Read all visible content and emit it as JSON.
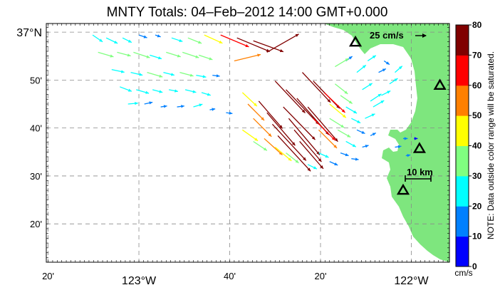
{
  "title": "MNTY Totals: 04–Feb–2012 14:00 GMT+0.000",
  "map": {
    "lon_range": [
      -123.34,
      -121.86
    ],
    "lat_range": [
      36.2,
      37.03
    ],
    "lon_ticks": [
      {
        "value": -123.3333,
        "label": "20'",
        "major": false
      },
      {
        "value": -123.0,
        "label": "123°W",
        "major": true
      },
      {
        "value": -122.6667,
        "label": "40'",
        "major": false
      },
      {
        "value": -122.3333,
        "label": "20'",
        "major": false
      },
      {
        "value": -122.0,
        "label": "122°W",
        "major": true
      }
    ],
    "lat_ticks": [
      {
        "value": 37.0,
        "label": "37°N",
        "major": true
      },
      {
        "value": 36.8333,
        "label": "50'",
        "major": false
      },
      {
        "value": 36.6667,
        "label": "40'",
        "major": false
      },
      {
        "value": 36.5,
        "label": "30'",
        "major": false
      },
      {
        "value": 36.3333,
        "label": "20'",
        "major": false
      }
    ],
    "grid": true,
    "land_color": "#7ee67e",
    "sea_color": "#ffffff",
    "stations_icon": "triangle-icon",
    "stations": [
      {
        "lon": -122.205,
        "lat": 36.965
      },
      {
        "lon": -121.895,
        "lat": 36.815
      },
      {
        "lon": -121.97,
        "lat": 36.595
      },
      {
        "lon": -122.03,
        "lat": 36.45
      }
    ],
    "scale_vector": {
      "label": "25 cm/s",
      "speed": 25
    },
    "scale_bar": {
      "label": "10 km",
      "km": 10
    }
  },
  "colorbar": {
    "unit": "cm/s",
    "ticks": [
      0,
      10,
      20,
      30,
      40,
      50,
      60,
      70,
      80
    ],
    "colors": [
      "#0000ff",
      "#0080ff",
      "#00ffff",
      "#80ff80",
      "#ffff00",
      "#ff8000",
      "#ff0000",
      "#800000"
    ],
    "note": "NOTE: Data outside color range will be saturated."
  },
  "vectors": [
    {
      "lon": -123.17,
      "lat": 36.99,
      "u": 22,
      "v": -15
    },
    {
      "lon": -123.12,
      "lat": 36.98,
      "u": 25,
      "v": -12
    },
    {
      "lon": -123.06,
      "lat": 36.98,
      "u": 20,
      "v": -10
    },
    {
      "lon": -123.0,
      "lat": 36.99,
      "u": 18,
      "v": -6
    },
    {
      "lon": -122.94,
      "lat": 36.99,
      "u": 12,
      "v": -4
    },
    {
      "lon": -122.88,
      "lat": 36.98,
      "u": 24,
      "v": -8
    },
    {
      "lon": -122.82,
      "lat": 36.98,
      "u": 30,
      "v": -12
    },
    {
      "lon": -122.76,
      "lat": 36.99,
      "u": 40,
      "v": -18
    },
    {
      "lon": -122.7,
      "lat": 36.99,
      "u": 62,
      "v": -26
    },
    {
      "lon": -122.64,
      "lat": 36.98,
      "u": 72,
      "v": -30
    },
    {
      "lon": -122.58,
      "lat": 36.97,
      "u": 66,
      "v": -24
    },
    {
      "lon": -123.15,
      "lat": 36.93,
      "u": 34,
      "v": -10
    },
    {
      "lon": -123.08,
      "lat": 36.93,
      "u": 30,
      "v": -8
    },
    {
      "lon": -123.02,
      "lat": 36.93,
      "u": 36,
      "v": -12
    },
    {
      "lon": -122.96,
      "lat": 36.92,
      "u": 26,
      "v": -8
    },
    {
      "lon": -122.9,
      "lat": 36.93,
      "u": 32,
      "v": -10
    },
    {
      "lon": -122.84,
      "lat": 36.93,
      "u": 36,
      "v": -12
    },
    {
      "lon": -122.78,
      "lat": 36.92,
      "u": 30,
      "v": -10
    },
    {
      "lon": -122.65,
      "lat": 36.9,
      "u": 58,
      "v": 14
    },
    {
      "lon": -122.53,
      "lat": 36.93,
      "u": 70,
      "v": 40
    },
    {
      "lon": -123.1,
      "lat": 36.87,
      "u": 28,
      "v": -6
    },
    {
      "lon": -123.03,
      "lat": 36.86,
      "u": 26,
      "v": -6
    },
    {
      "lon": -122.97,
      "lat": 36.86,
      "u": 34,
      "v": -10
    },
    {
      "lon": -122.91,
      "lat": 36.86,
      "u": 24,
      "v": -6
    },
    {
      "lon": -122.85,
      "lat": 36.86,
      "u": 30,
      "v": -8
    },
    {
      "lon": -122.79,
      "lat": 36.85,
      "u": 22,
      "v": -4
    },
    {
      "lon": -122.73,
      "lat": 36.85,
      "u": 16,
      "v": -2
    },
    {
      "lon": -123.07,
      "lat": 36.81,
      "u": 26,
      "v": -10
    },
    {
      "lon": -123.01,
      "lat": 36.8,
      "u": 28,
      "v": -8
    },
    {
      "lon": -122.95,
      "lat": 36.8,
      "u": 22,
      "v": -6
    },
    {
      "lon": -122.89,
      "lat": 36.8,
      "u": 20,
      "v": -4
    },
    {
      "lon": -122.83,
      "lat": 36.8,
      "u": 24,
      "v": -6
    },
    {
      "lon": -122.77,
      "lat": 36.79,
      "u": 20,
      "v": -6
    },
    {
      "lon": -123.04,
      "lat": 36.75,
      "u": 22,
      "v": 2
    },
    {
      "lon": -122.98,
      "lat": 36.75,
      "u": 18,
      "v": 4
    },
    {
      "lon": -122.92,
      "lat": 36.74,
      "u": 14,
      "v": 2
    },
    {
      "lon": -122.86,
      "lat": 36.74,
      "u": 16,
      "v": 2
    },
    {
      "lon": -122.8,
      "lat": 36.74,
      "u": 20,
      "v": 6
    },
    {
      "lon": -122.74,
      "lat": 36.73,
      "u": 12,
      "v": 2
    },
    {
      "lon": -122.68,
      "lat": 36.72,
      "u": 14,
      "v": -2
    },
    {
      "lon": -122.62,
      "lat": 36.79,
      "u": 32,
      "v": -30
    },
    {
      "lon": -122.6,
      "lat": 36.75,
      "u": 36,
      "v": -36
    },
    {
      "lon": -122.58,
      "lat": 36.7,
      "u": 40,
      "v": -40
    },
    {
      "lon": -122.56,
      "lat": 36.76,
      "u": 52,
      "v": -60
    },
    {
      "lon": -122.53,
      "lat": 36.72,
      "u": 62,
      "v": -72
    },
    {
      "lon": -122.51,
      "lat": 36.68,
      "u": 74,
      "v": -80
    },
    {
      "lon": -122.49,
      "lat": 36.64,
      "u": 72,
      "v": -78
    },
    {
      "lon": -122.47,
      "lat": 36.74,
      "u": 70,
      "v": -72
    },
    {
      "lon": -122.45,
      "lat": 36.7,
      "u": 68,
      "v": -80
    },
    {
      "lon": -122.43,
      "lat": 36.66,
      "u": 60,
      "v": -70
    },
    {
      "lon": -122.41,
      "lat": 36.62,
      "u": 52,
      "v": -60
    },
    {
      "lon": -122.5,
      "lat": 36.83,
      "u": 66,
      "v": -70
    },
    {
      "lon": -122.46,
      "lat": 36.8,
      "u": 72,
      "v": -76
    },
    {
      "lon": -122.42,
      "lat": 36.77,
      "u": 70,
      "v": -80
    },
    {
      "lon": -122.38,
      "lat": 36.74,
      "u": 66,
      "v": -76
    },
    {
      "lon": -122.36,
      "lat": 36.7,
      "u": 48,
      "v": -48
    },
    {
      "lon": -122.34,
      "lat": 36.66,
      "u": 40,
      "v": -40
    },
    {
      "lon": -122.4,
      "lat": 36.86,
      "u": 62,
      "v": -66
    },
    {
      "lon": -122.36,
      "lat": 36.83,
      "u": 58,
      "v": -60
    },
    {
      "lon": -122.32,
      "lat": 36.79,
      "u": 46,
      "v": -44
    },
    {
      "lon": -122.3,
      "lat": 36.75,
      "u": 36,
      "v": -30
    },
    {
      "lon": -122.28,
      "lat": 36.82,
      "u": 28,
      "v": -22
    },
    {
      "lon": -122.26,
      "lat": 36.78,
      "u": 26,
      "v": -18
    },
    {
      "lon": -122.24,
      "lat": 36.74,
      "u": 24,
      "v": -14
    },
    {
      "lon": -122.22,
      "lat": 36.7,
      "u": 20,
      "v": -10
    },
    {
      "lon": -122.3,
      "lat": 36.7,
      "u": 32,
      "v": -20
    },
    {
      "lon": -122.27,
      "lat": 36.66,
      "u": 28,
      "v": -16
    },
    {
      "lon": -122.24,
      "lat": 36.62,
      "u": 22,
      "v": -12
    },
    {
      "lon": -122.2,
      "lat": 36.66,
      "u": 18,
      "v": -8
    },
    {
      "lon": -122.17,
      "lat": 36.7,
      "u": 22,
      "v": 10
    },
    {
      "lon": -122.14,
      "lat": 36.74,
      "u": 24,
      "v": 14
    },
    {
      "lon": -122.11,
      "lat": 36.78,
      "u": 20,
      "v": 10
    },
    {
      "lon": -122.08,
      "lat": 36.82,
      "u": 18,
      "v": 12
    },
    {
      "lon": -122.06,
      "lat": 36.86,
      "u": 16,
      "v": 14
    },
    {
      "lon": -122.2,
      "lat": 36.86,
      "u": 20,
      "v": 16
    },
    {
      "lon": -122.16,
      "lat": 36.9,
      "u": 18,
      "v": 12
    },
    {
      "lon": -122.12,
      "lat": 36.86,
      "u": 16,
      "v": 8
    },
    {
      "lon": -122.1,
      "lat": 36.9,
      "u": 12,
      "v": -8
    },
    {
      "lon": -122.24,
      "lat": 36.9,
      "u": 14,
      "v": 10
    },
    {
      "lon": -122.28,
      "lat": 36.88,
      "u": 30,
      "v": 18
    },
    {
      "lon": -122.18,
      "lat": 36.8,
      "u": 22,
      "v": 14
    },
    {
      "lon": -122.15,
      "lat": 36.76,
      "u": 24,
      "v": 16
    },
    {
      "lon": -122.26,
      "lat": 36.58,
      "u": 18,
      "v": -6
    },
    {
      "lon": -122.22,
      "lat": 36.56,
      "u": 16,
      "v": -2
    },
    {
      "lon": -122.18,
      "lat": 36.6,
      "u": 14,
      "v": 4
    },
    {
      "lon": -122.15,
      "lat": 36.64,
      "u": 12,
      "v": 6
    },
    {
      "lon": -122.34,
      "lat": 36.58,
      "u": 22,
      "v": -10
    },
    {
      "lon": -122.3,
      "lat": 36.55,
      "u": 18,
      "v": -8
    },
    {
      "lon": -122.38,
      "lat": 36.54,
      "u": 20,
      "v": -10
    },
    {
      "lon": -122.03,
      "lat": 36.63,
      "u": 10,
      "v": 0
    },
    {
      "lon": -121.99,
      "lat": 36.63,
      "u": 8,
      "v": 0
    },
    {
      "lon": -122.06,
      "lat": 36.6,
      "u": 14,
      "v": 2
    },
    {
      "lon": -122.02,
      "lat": 36.57,
      "u": 10,
      "v": 2
    },
    {
      "lon": -122.54,
      "lat": 36.63,
      "u": 40,
      "v": -36
    },
    {
      "lon": -122.5,
      "lat": 36.6,
      "u": 36,
      "v": -30
    },
    {
      "lon": -122.46,
      "lat": 36.58,
      "u": 28,
      "v": -22
    },
    {
      "lon": -122.62,
      "lat": 36.66,
      "u": 34,
      "v": -24
    },
    {
      "lon": -122.58,
      "lat": 36.62,
      "u": 30,
      "v": -20
    }
  ]
}
